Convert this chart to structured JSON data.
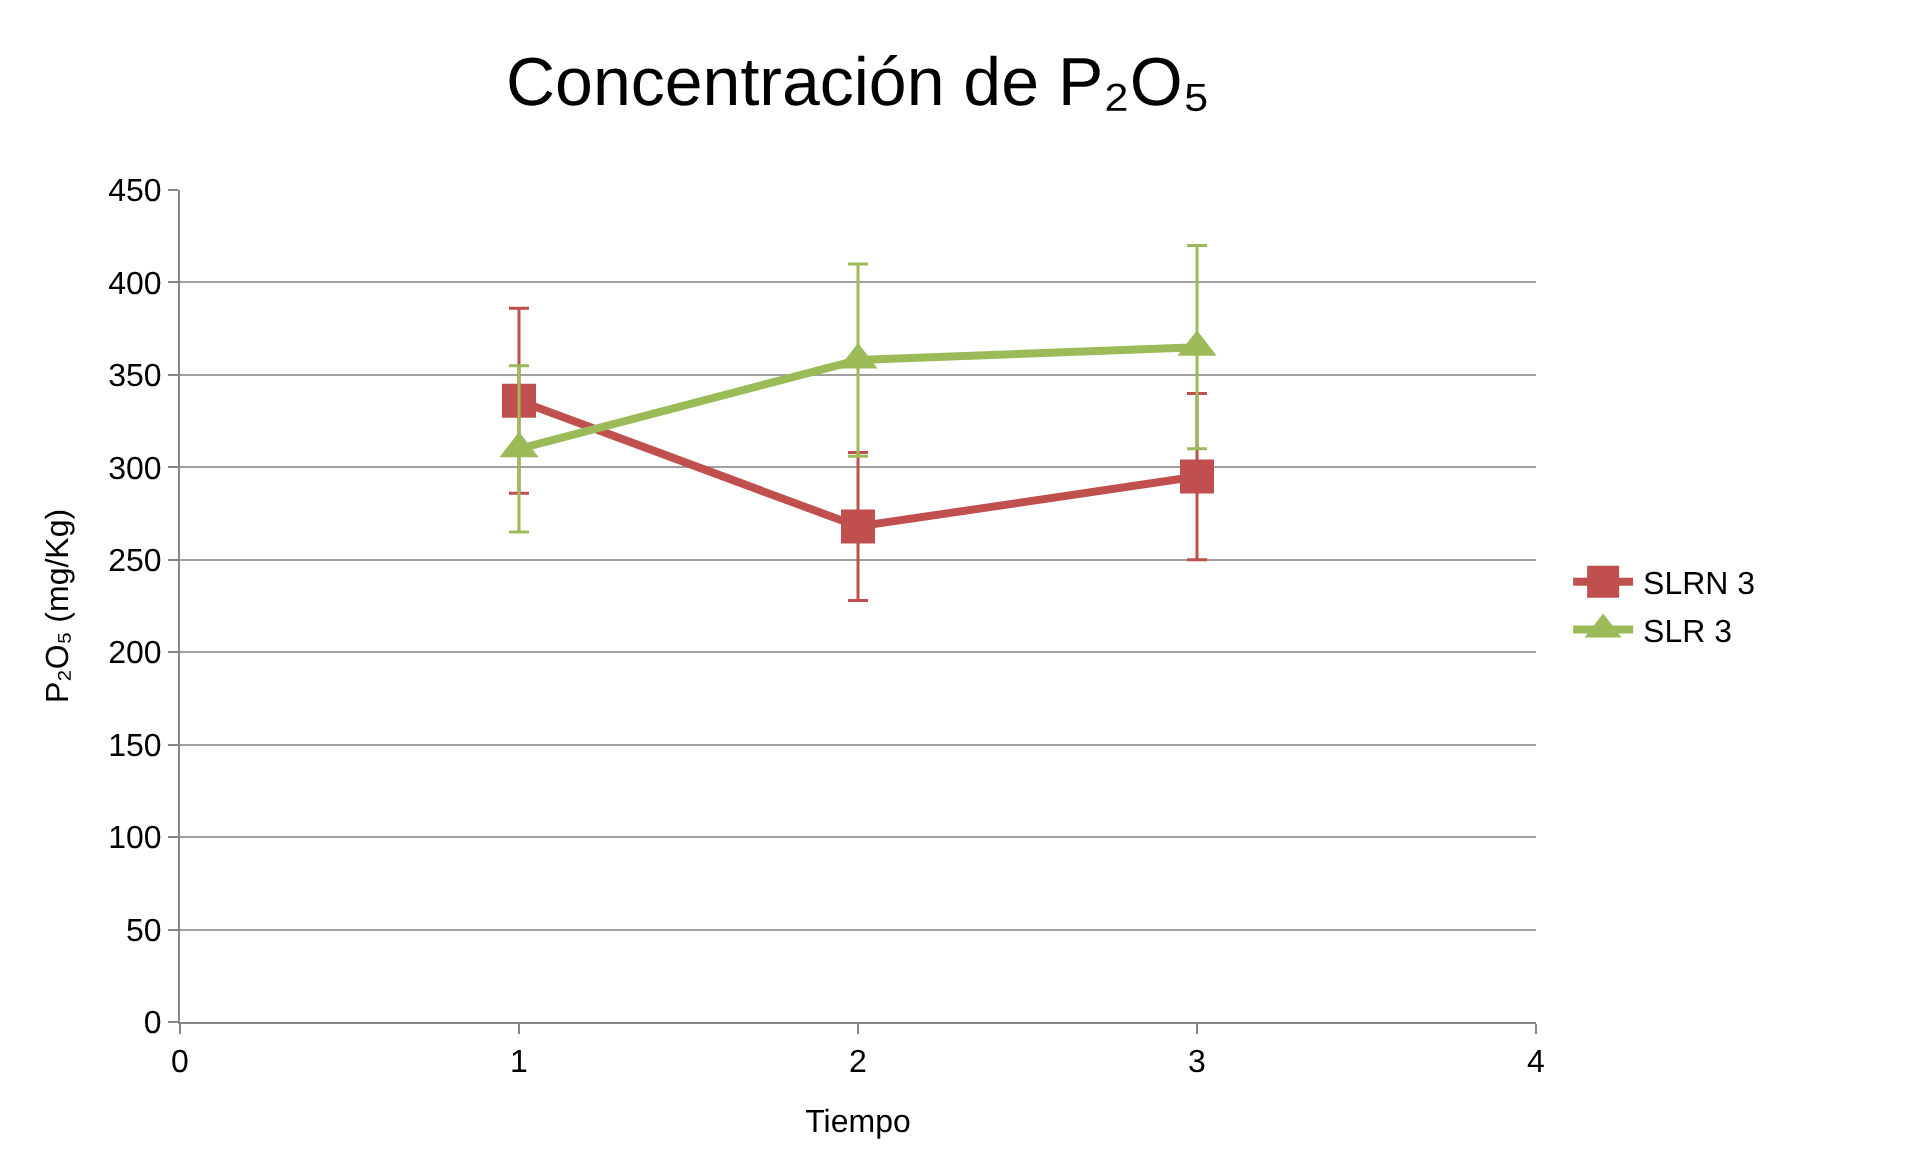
{
  "chart_data": {
    "type": "line",
    "title": "Concentración de P₂O₅",
    "xlabel": "Tiempo",
    "ylabel": "P₂O₅ (mg/Kg)",
    "x": [
      1,
      2,
      3
    ],
    "series": [
      {
        "name": "SLRN 3",
        "color": "#c0504d",
        "marker": "square",
        "values": [
          336,
          268,
          295
        ],
        "errors": [
          50,
          40,
          45
        ]
      },
      {
        "name": "SLR 3",
        "color": "#9bbb59",
        "marker": "triangle",
        "values": [
          310,
          358,
          365
        ],
        "errors": [
          45,
          52,
          55
        ]
      }
    ],
    "xlim": [
      0,
      4
    ],
    "xticks": [
      0,
      1,
      2,
      3,
      4
    ],
    "ylim": [
      0,
      450
    ],
    "yticks": [
      0,
      50,
      100,
      150,
      200,
      250,
      300,
      350,
      400,
      450
    ],
    "grid": "y",
    "legend": "right",
    "line_style": "solid"
  }
}
